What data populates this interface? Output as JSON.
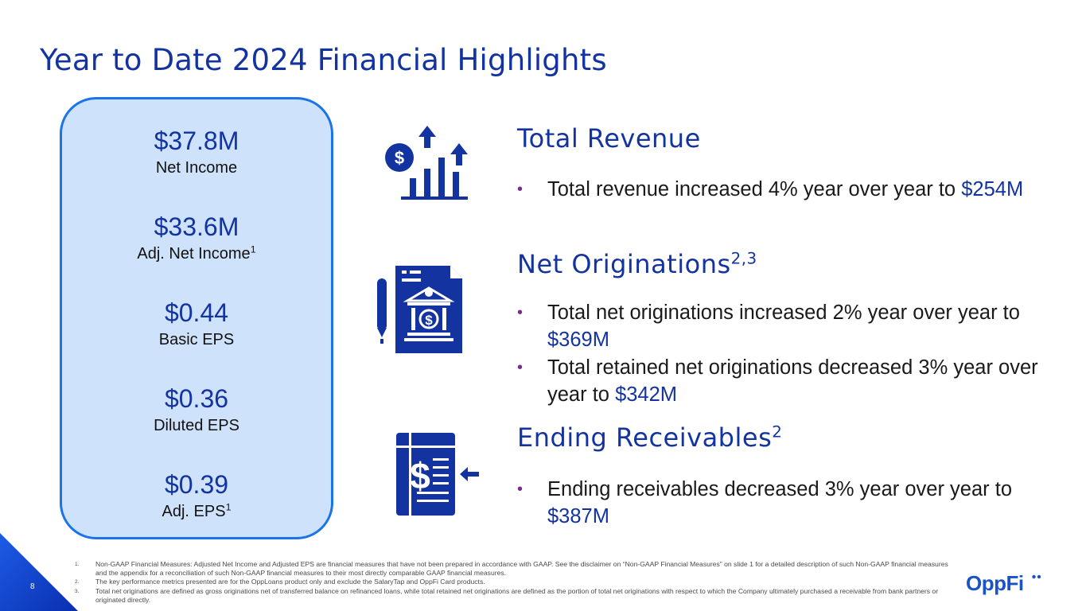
{
  "title": "Year to Date 2024 Financial Highlights",
  "metrics": [
    {
      "value": "$37.8M",
      "label": "Net Income",
      "sup": ""
    },
    {
      "value": "$33.6M",
      "label": "Adj. Net Income",
      "sup": "1"
    },
    {
      "value": "$0.44",
      "label": "Basic EPS",
      "sup": ""
    },
    {
      "value": "$0.36",
      "label": "Diluted EPS",
      "sup": ""
    },
    {
      "value": "$0.39",
      "label": "Adj. EPS",
      "sup": "1"
    }
  ],
  "sections": {
    "revenue": {
      "title": "Total Revenue",
      "icon": "revenue-growth-icon",
      "bullets": [
        {
          "text": "Total revenue increased 4% year over year to",
          "highlight": "$254M"
        }
      ]
    },
    "originations": {
      "title": "Net Originations",
      "title_sup": "2,3",
      "icon": "bank-document-icon",
      "bullets": [
        {
          "text": "Total net originations increased 2% year over year to",
          "highlight": "$369M"
        },
        {
          "text": "Total retained net originations decreased 3% year over year to",
          "highlight": "$342M"
        }
      ]
    },
    "receivables": {
      "title": "Ending Receivables",
      "title_sup": "2",
      "icon": "receivables-ledger-icon",
      "bullets": [
        {
          "text": "Ending receivables decreased 3% year over year to",
          "highlight": "$387M"
        }
      ]
    }
  },
  "bullet_char": "•",
  "footnotes": [
    {
      "num": "1.",
      "text": "Non-GAAP Financial Measures: Adjusted Net Income and Adjusted EPS are financial measures that have not been prepared in accordance with GAAP. See the disclaimer on “Non-GAAP Financial Measures” on slide 1 for a detailed description of such Non-GAAP financial measures and the appendix for a reconciliation of such Non-GAAP financial measures to their most directly comparable GAAP financial measures."
    },
    {
      "num": "2.",
      "text": "The key performance metrics presented are for the OppLoans product only and exclude the SalaryTap and OppFi Card products."
    },
    {
      "num": "3.",
      "text": "Total net originations are defined as gross originations net of transferred balance on refinanced loans, while total retained net originations are defined as the portion of total net originations with respect to which the Company ultimately purchased a receivable from bank partners or originated directly."
    }
  ],
  "page_number": "8",
  "logo_text": "OppFi",
  "colors": {
    "accent": "#1333a0",
    "card_bg": "#cfe2fb",
    "card_border": "#1a73e8",
    "bullet": "#7a2a8a",
    "logo": "#1a52c7"
  }
}
